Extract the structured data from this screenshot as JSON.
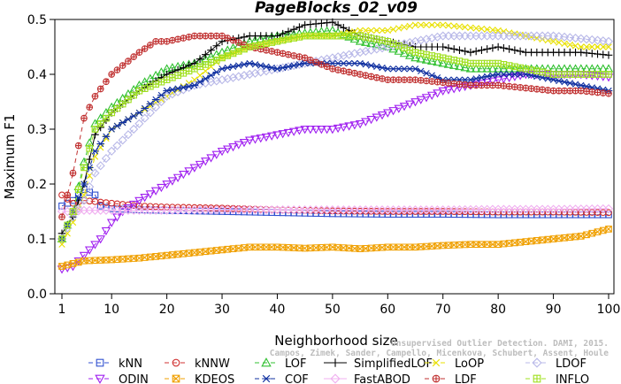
{
  "chart_data": {
    "type": "line",
    "title": "PageBlocks_02_v09",
    "xlabel": "Neighborhood size",
    "ylabel": "Maximum F1",
    "xlim": [
      1,
      100
    ],
    "ylim": [
      0,
      0.5
    ],
    "xticks": [
      1,
      10,
      20,
      30,
      40,
      50,
      60,
      70,
      80,
      90,
      100
    ],
    "yticks": [
      "0.0",
      "0.1",
      "0.2",
      "0.3",
      "0.4",
      "0.5"
    ],
    "grid": false,
    "legend_position": "bottom",
    "watermark": [
      "Unsupervised Outlier Detection. DAMI, 2015.",
      "Campos, Zimek, Sander, Campello, Micenkova, Schubert, Assent, Houle"
    ],
    "series": [
      {
        "name": "kNN",
        "color": "#3050d0",
        "marker": "square",
        "dash": "5,4",
        "points": [
          [
            1,
            0.16
          ],
          [
            3,
            0.17
          ],
          [
            5,
            0.19
          ],
          [
            7,
            0.18
          ],
          [
            8,
            0.16
          ],
          [
            10,
            0.155
          ],
          [
            15,
            0.153
          ],
          [
            20,
            0.152
          ],
          [
            30,
            0.15
          ],
          [
            40,
            0.148
          ],
          [
            50,
            0.146
          ],
          [
            60,
            0.145
          ],
          [
            70,
            0.145
          ],
          [
            80,
            0.144
          ],
          [
            90,
            0.144
          ],
          [
            100,
            0.144
          ]
        ]
      },
      {
        "name": "kNNW",
        "color": "#d03030",
        "marker": "circle",
        "dash": "5,4",
        "points": [
          [
            1,
            0.18
          ],
          [
            3,
            0.165
          ],
          [
            5,
            0.17
          ],
          [
            7,
            0.168
          ],
          [
            10,
            0.165
          ],
          [
            15,
            0.16
          ],
          [
            20,
            0.158
          ],
          [
            30,
            0.156
          ],
          [
            40,
            0.153
          ],
          [
            50,
            0.151
          ],
          [
            60,
            0.15
          ],
          [
            70,
            0.15
          ],
          [
            80,
            0.149
          ],
          [
            90,
            0.149
          ],
          [
            100,
            0.148
          ]
        ]
      },
      {
        "name": "LOF",
        "color": "#30c030",
        "marker": "triangle",
        "dash": "5,4",
        "points": [
          [
            1,
            0.1
          ],
          [
            3,
            0.15
          ],
          [
            5,
            0.24
          ],
          [
            7,
            0.31
          ],
          [
            10,
            0.34
          ],
          [
            15,
            0.38
          ],
          [
            20,
            0.41
          ],
          [
            25,
            0.42
          ],
          [
            30,
            0.44
          ],
          [
            35,
            0.46
          ],
          [
            40,
            0.47
          ],
          [
            45,
            0.475
          ],
          [
            50,
            0.48
          ],
          [
            55,
            0.46
          ],
          [
            60,
            0.45
          ],
          [
            65,
            0.43
          ],
          [
            70,
            0.42
          ],
          [
            75,
            0.41
          ],
          [
            80,
            0.41
          ],
          [
            85,
            0.41
          ],
          [
            90,
            0.41
          ],
          [
            95,
            0.41
          ],
          [
            100,
            0.41
          ]
        ]
      },
      {
        "name": "SimplifiedLOF",
        "color": "#000000",
        "marker": "plus",
        "dash": "",
        "points": [
          [
            1,
            0.11
          ],
          [
            3,
            0.14
          ],
          [
            5,
            0.2
          ],
          [
            7,
            0.29
          ],
          [
            10,
            0.33
          ],
          [
            15,
            0.37
          ],
          [
            20,
            0.4
          ],
          [
            25,
            0.42
          ],
          [
            30,
            0.46
          ],
          [
            35,
            0.47
          ],
          [
            40,
            0.47
          ],
          [
            45,
            0.49
          ],
          [
            50,
            0.495
          ],
          [
            55,
            0.47
          ],
          [
            60,
            0.46
          ],
          [
            65,
            0.45
          ],
          [
            70,
            0.45
          ],
          [
            75,
            0.44
          ],
          [
            80,
            0.45
          ],
          [
            85,
            0.44
          ],
          [
            90,
            0.44
          ],
          [
            95,
            0.44
          ],
          [
            100,
            0.435
          ]
        ]
      },
      {
        "name": "LoOP",
        "color": "#e8e000",
        "marker": "x",
        "dash": "5,4",
        "points": [
          [
            1,
            0.09
          ],
          [
            3,
            0.13
          ],
          [
            5,
            0.18
          ],
          [
            7,
            0.25
          ],
          [
            10,
            0.3
          ],
          [
            15,
            0.33
          ],
          [
            20,
            0.36
          ],
          [
            25,
            0.39
          ],
          [
            30,
            0.43
          ],
          [
            35,
            0.45
          ],
          [
            40,
            0.46
          ],
          [
            45,
            0.47
          ],
          [
            50,
            0.47
          ],
          [
            55,
            0.48
          ],
          [
            60,
            0.48
          ],
          [
            65,
            0.49
          ],
          [
            70,
            0.49
          ],
          [
            75,
            0.485
          ],
          [
            80,
            0.48
          ],
          [
            85,
            0.47
          ],
          [
            90,
            0.46
          ],
          [
            95,
            0.45
          ],
          [
            100,
            0.45
          ]
        ]
      },
      {
        "name": "LDOF",
        "color": "#b8b8e8",
        "marker": "diamond",
        "dash": "5,4",
        "points": [
          [
            1,
            0.1
          ],
          [
            3,
            0.14
          ],
          [
            5,
            0.17
          ],
          [
            7,
            0.22
          ],
          [
            10,
            0.26
          ],
          [
            15,
            0.31
          ],
          [
            20,
            0.36
          ],
          [
            25,
            0.38
          ],
          [
            30,
            0.39
          ],
          [
            35,
            0.4
          ],
          [
            40,
            0.41
          ],
          [
            45,
            0.42
          ],
          [
            50,
            0.43
          ],
          [
            55,
            0.44
          ],
          [
            60,
            0.45
          ],
          [
            65,
            0.46
          ],
          [
            70,
            0.47
          ],
          [
            75,
            0.47
          ],
          [
            80,
            0.47
          ],
          [
            85,
            0.47
          ],
          [
            90,
            0.47
          ],
          [
            95,
            0.465
          ],
          [
            100,
            0.46
          ]
        ]
      },
      {
        "name": "ODIN",
        "color": "#a020f0",
        "marker": "triangle-down",
        "dash": "5,4",
        "points": [
          [
            1,
            0.045
          ],
          [
            3,
            0.05
          ],
          [
            5,
            0.07
          ],
          [
            8,
            0.1
          ],
          [
            10,
            0.13
          ],
          [
            12,
            0.15
          ],
          [
            15,
            0.17
          ],
          [
            20,
            0.2
          ],
          [
            25,
            0.23
          ],
          [
            30,
            0.26
          ],
          [
            35,
            0.28
          ],
          [
            40,
            0.29
          ],
          [
            45,
            0.3
          ],
          [
            50,
            0.3
          ],
          [
            55,
            0.31
          ],
          [
            60,
            0.33
          ],
          [
            65,
            0.35
          ],
          [
            70,
            0.37
          ],
          [
            75,
            0.38
          ],
          [
            80,
            0.39
          ],
          [
            85,
            0.4
          ],
          [
            90,
            0.4
          ],
          [
            95,
            0.4
          ],
          [
            100,
            0.395
          ]
        ]
      },
      {
        "name": "KDEOS",
        "color": "#f0a000",
        "marker": "square-x",
        "dash": "5,4",
        "points": [
          [
            1,
            0.05
          ],
          [
            3,
            0.055
          ],
          [
            5,
            0.06
          ],
          [
            10,
            0.062
          ],
          [
            15,
            0.065
          ],
          [
            20,
            0.07
          ],
          [
            25,
            0.075
          ],
          [
            30,
            0.08
          ],
          [
            35,
            0.085
          ],
          [
            40,
            0.085
          ],
          [
            45,
            0.083
          ],
          [
            50,
            0.085
          ],
          [
            55,
            0.082
          ],
          [
            60,
            0.085
          ],
          [
            65,
            0.085
          ],
          [
            70,
            0.088
          ],
          [
            75,
            0.09
          ],
          [
            80,
            0.09
          ],
          [
            85,
            0.095
          ],
          [
            90,
            0.1
          ],
          [
            95,
            0.105
          ],
          [
            100,
            0.118
          ]
        ]
      },
      {
        "name": "COF",
        "color": "#1030a0",
        "marker": "asterisk",
        "dash": "5,4",
        "points": [
          [
            1,
            0.1
          ],
          [
            3,
            0.15
          ],
          [
            5,
            0.2
          ],
          [
            7,
            0.26
          ],
          [
            10,
            0.3
          ],
          [
            15,
            0.33
          ],
          [
            20,
            0.37
          ],
          [
            25,
            0.38
          ],
          [
            30,
            0.41
          ],
          [
            35,
            0.42
          ],
          [
            40,
            0.41
          ],
          [
            45,
            0.42
          ],
          [
            50,
            0.42
          ],
          [
            55,
            0.42
          ],
          [
            60,
            0.41
          ],
          [
            65,
            0.41
          ],
          [
            70,
            0.39
          ],
          [
            75,
            0.39
          ],
          [
            80,
            0.4
          ],
          [
            85,
            0.4
          ],
          [
            90,
            0.39
          ],
          [
            95,
            0.38
          ],
          [
            100,
            0.37
          ]
        ]
      },
      {
        "name": "FastABOD",
        "color": "#f0b0f0",
        "marker": "diamond",
        "dash": "",
        "points": [
          [
            1,
            0.15
          ],
          [
            3,
            0.15
          ],
          [
            5,
            0.152
          ],
          [
            10,
            0.152
          ],
          [
            20,
            0.152
          ],
          [
            30,
            0.153
          ],
          [
            40,
            0.153
          ],
          [
            50,
            0.153
          ],
          [
            60,
            0.153
          ],
          [
            70,
            0.153
          ],
          [
            80,
            0.154
          ],
          [
            90,
            0.154
          ],
          [
            100,
            0.155
          ]
        ]
      },
      {
        "name": "LDF",
        "color": "#c03030",
        "marker": "circle-plus",
        "dash": "5,4",
        "points": [
          [
            1,
            0.14
          ],
          [
            3,
            0.22
          ],
          [
            5,
            0.32
          ],
          [
            7,
            0.36
          ],
          [
            10,
            0.4
          ],
          [
            15,
            0.44
          ],
          [
            18,
            0.46
          ],
          [
            20,
            0.46
          ],
          [
            25,
            0.47
          ],
          [
            30,
            0.47
          ],
          [
            35,
            0.45
          ],
          [
            40,
            0.44
          ],
          [
            45,
            0.43
          ],
          [
            50,
            0.41
          ],
          [
            55,
            0.4
          ],
          [
            60,
            0.39
          ],
          [
            65,
            0.39
          ],
          [
            70,
            0.385
          ],
          [
            75,
            0.38
          ],
          [
            80,
            0.38
          ],
          [
            85,
            0.375
          ],
          [
            90,
            0.37
          ],
          [
            95,
            0.37
          ],
          [
            100,
            0.365
          ]
        ]
      },
      {
        "name": "INFLO",
        "color": "#a0e020",
        "marker": "square-plus",
        "dash": "5,4",
        "points": [
          [
            1,
            0.1
          ],
          [
            3,
            0.15
          ],
          [
            5,
            0.23
          ],
          [
            7,
            0.3
          ],
          [
            10,
            0.33
          ],
          [
            15,
            0.37
          ],
          [
            20,
            0.39
          ],
          [
            25,
            0.41
          ],
          [
            30,
            0.43
          ],
          [
            35,
            0.45
          ],
          [
            40,
            0.46
          ],
          [
            45,
            0.47
          ],
          [
            50,
            0.47
          ],
          [
            55,
            0.47
          ],
          [
            60,
            0.46
          ],
          [
            65,
            0.44
          ],
          [
            70,
            0.43
          ],
          [
            75,
            0.42
          ],
          [
            80,
            0.42
          ],
          [
            85,
            0.41
          ],
          [
            90,
            0.4
          ],
          [
            95,
            0.4
          ],
          [
            100,
            0.4
          ]
        ]
      }
    ]
  }
}
